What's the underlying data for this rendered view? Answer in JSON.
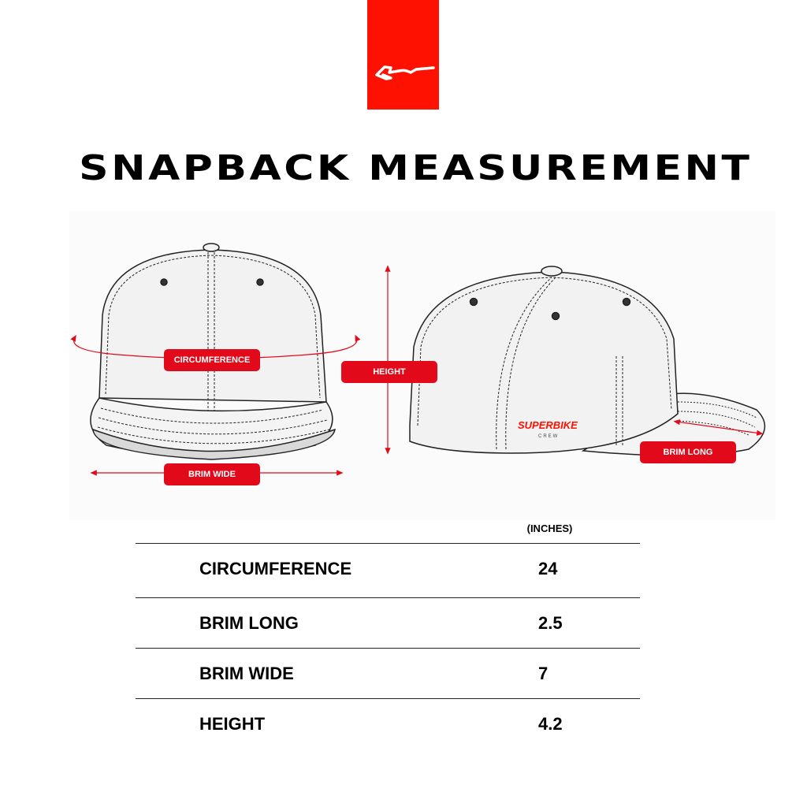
{
  "brand": {
    "logo_icon": "motorcycle-swoosh-icon",
    "color": "#fe1100",
    "cap_logo_text": "SUPERBIKE",
    "cap_logo_sub": "CREW"
  },
  "title": "SNAPBACK MEASUREMENT",
  "labels": {
    "circumference": "CIRCUMFERENCE",
    "height": "HEIGHT",
    "brim_wide": "BRIM WIDE",
    "brim_long": "BRIM LONG"
  },
  "accent_color": "#e20a1a",
  "table": {
    "units": "(INCHES)",
    "rows": [
      {
        "label": "CIRCUMFERENCE",
        "value": "24"
      },
      {
        "label": "BRIM LONG",
        "value": "2.5"
      },
      {
        "label": "BRIM WIDE",
        "value": "7"
      },
      {
        "label": "HEIGHT",
        "value": "4.2"
      }
    ]
  }
}
